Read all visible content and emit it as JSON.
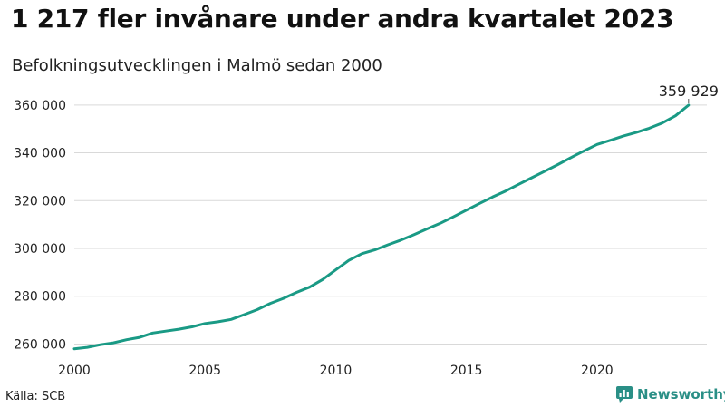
{
  "title": "1 217 fler invånare under andra kvartalet 2023",
  "subtitle": "Befolkningsutvecklingen i Malmö sedan 2000",
  "source": "Källa: SCB",
  "brand": {
    "name": "Newsworthy",
    "icon": "newsworthy-logo-icon"
  },
  "colors": {
    "line": "#1a9a85",
    "grid": "#d9d9d9",
    "brand": "#2a8f86",
    "text": "#222222"
  },
  "chart_data": {
    "type": "line",
    "title": "1 217 fler invånare under andra kvartalet 2023",
    "subtitle": "Befolkningsutvecklingen i Malmö sedan 2000",
    "xlabel": "",
    "ylabel": "",
    "xlim": [
      2000,
      2024.2
    ],
    "ylim": [
      256000,
      366000
    ],
    "grid": "horizontal",
    "y_ticks": [
      260000,
      280000,
      300000,
      320000,
      340000,
      360000
    ],
    "y_tick_labels": [
      "260 000",
      "280 000",
      "300 000",
      "320 000",
      "340 000",
      "360 000"
    ],
    "x_ticks": [
      2000,
      2005,
      2010,
      2015,
      2020
    ],
    "x_tick_labels": [
      "2000",
      "2005",
      "2010",
      "2015",
      "2020"
    ],
    "end_label": "359 929",
    "series": [
      {
        "x": [
          2000.0,
          2000.5,
          2001.0,
          2001.5,
          2002.0,
          2002.5,
          2003.0,
          2003.5,
          2004.0,
          2004.5,
          2005.0,
          2005.5,
          2006.0,
          2006.5,
          2007.0,
          2007.5,
          2008.0,
          2008.5,
          2009.0,
          2009.5,
          2010.0,
          2010.5,
          2011.0,
          2011.5,
          2012.0,
          2012.5,
          2013.0,
          2013.5,
          2014.0,
          2014.5,
          2015.0,
          2015.5,
          2016.0,
          2016.5,
          2017.0,
          2017.5,
          2018.0,
          2018.5,
          2019.0,
          2019.5,
          2020.0,
          2020.5,
          2021.0,
          2021.5,
          2022.0,
          2022.5,
          2023.0,
          2023.5
        ],
        "values": [
          258000,
          258600,
          259700,
          260500,
          261800,
          262800,
          264600,
          265400,
          266200,
          267200,
          268600,
          269300,
          270300,
          272300,
          274400,
          277000,
          279100,
          281600,
          283800,
          287000,
          291000,
          295000,
          297800,
          299400,
          301500,
          303500,
          305800,
          308200,
          310500,
          313200,
          316000,
          318800,
          321500,
          324000,
          326800,
          329600,
          332300,
          335100,
          338000,
          340800,
          343500,
          345200,
          347000,
          348500,
          350300,
          352500,
          355500,
          359929
        ]
      }
    ]
  }
}
